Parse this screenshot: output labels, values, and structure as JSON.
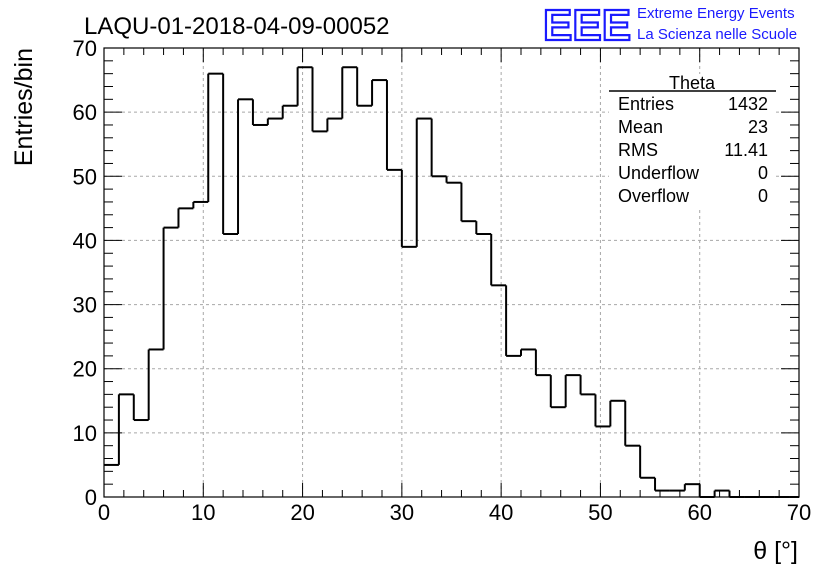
{
  "title": "LAQU-01-2018-04-09-00052",
  "logo": {
    "mark": "EEE",
    "line1": "Extreme Energy Events",
    "line2": "La Scienza nelle Scuole",
    "color": "#1a1aff"
  },
  "stats_box": {
    "name": "Theta",
    "rows": [
      {
        "label": "Entries",
        "value": "1432"
      },
      {
        "label": "Mean",
        "value": "23"
      },
      {
        "label": "RMS",
        "value": "11.41"
      },
      {
        "label": "Underflow",
        "value": "0"
      },
      {
        "label": "Overflow",
        "value": "0"
      }
    ]
  },
  "chart_data": {
    "type": "histogram",
    "xlabel": "θ [°]",
    "ylabel": "Entries/bin",
    "xlim": [
      0,
      70
    ],
    "ylim": [
      0,
      70
    ],
    "x_ticks": [
      "0",
      "10",
      "20",
      "30",
      "40",
      "50",
      "60",
      "70"
    ],
    "y_ticks": [
      "0",
      "10",
      "20",
      "30",
      "40",
      "50",
      "60",
      "70"
    ],
    "grid": true,
    "bin_width": 1.5,
    "bin_start": 0,
    "values": [
      5,
      16,
      12,
      23,
      42,
      45,
      46,
      66,
      41,
      62,
      58,
      59,
      61,
      67,
      57,
      59,
      67,
      61,
      65,
      51,
      39,
      59,
      50,
      49,
      43,
      41,
      33,
      22,
      23,
      19,
      14,
      19,
      16,
      11,
      15,
      8,
      3,
      1,
      1,
      2,
      0,
      1,
      0,
      0,
      0,
      0,
      0
    ]
  }
}
